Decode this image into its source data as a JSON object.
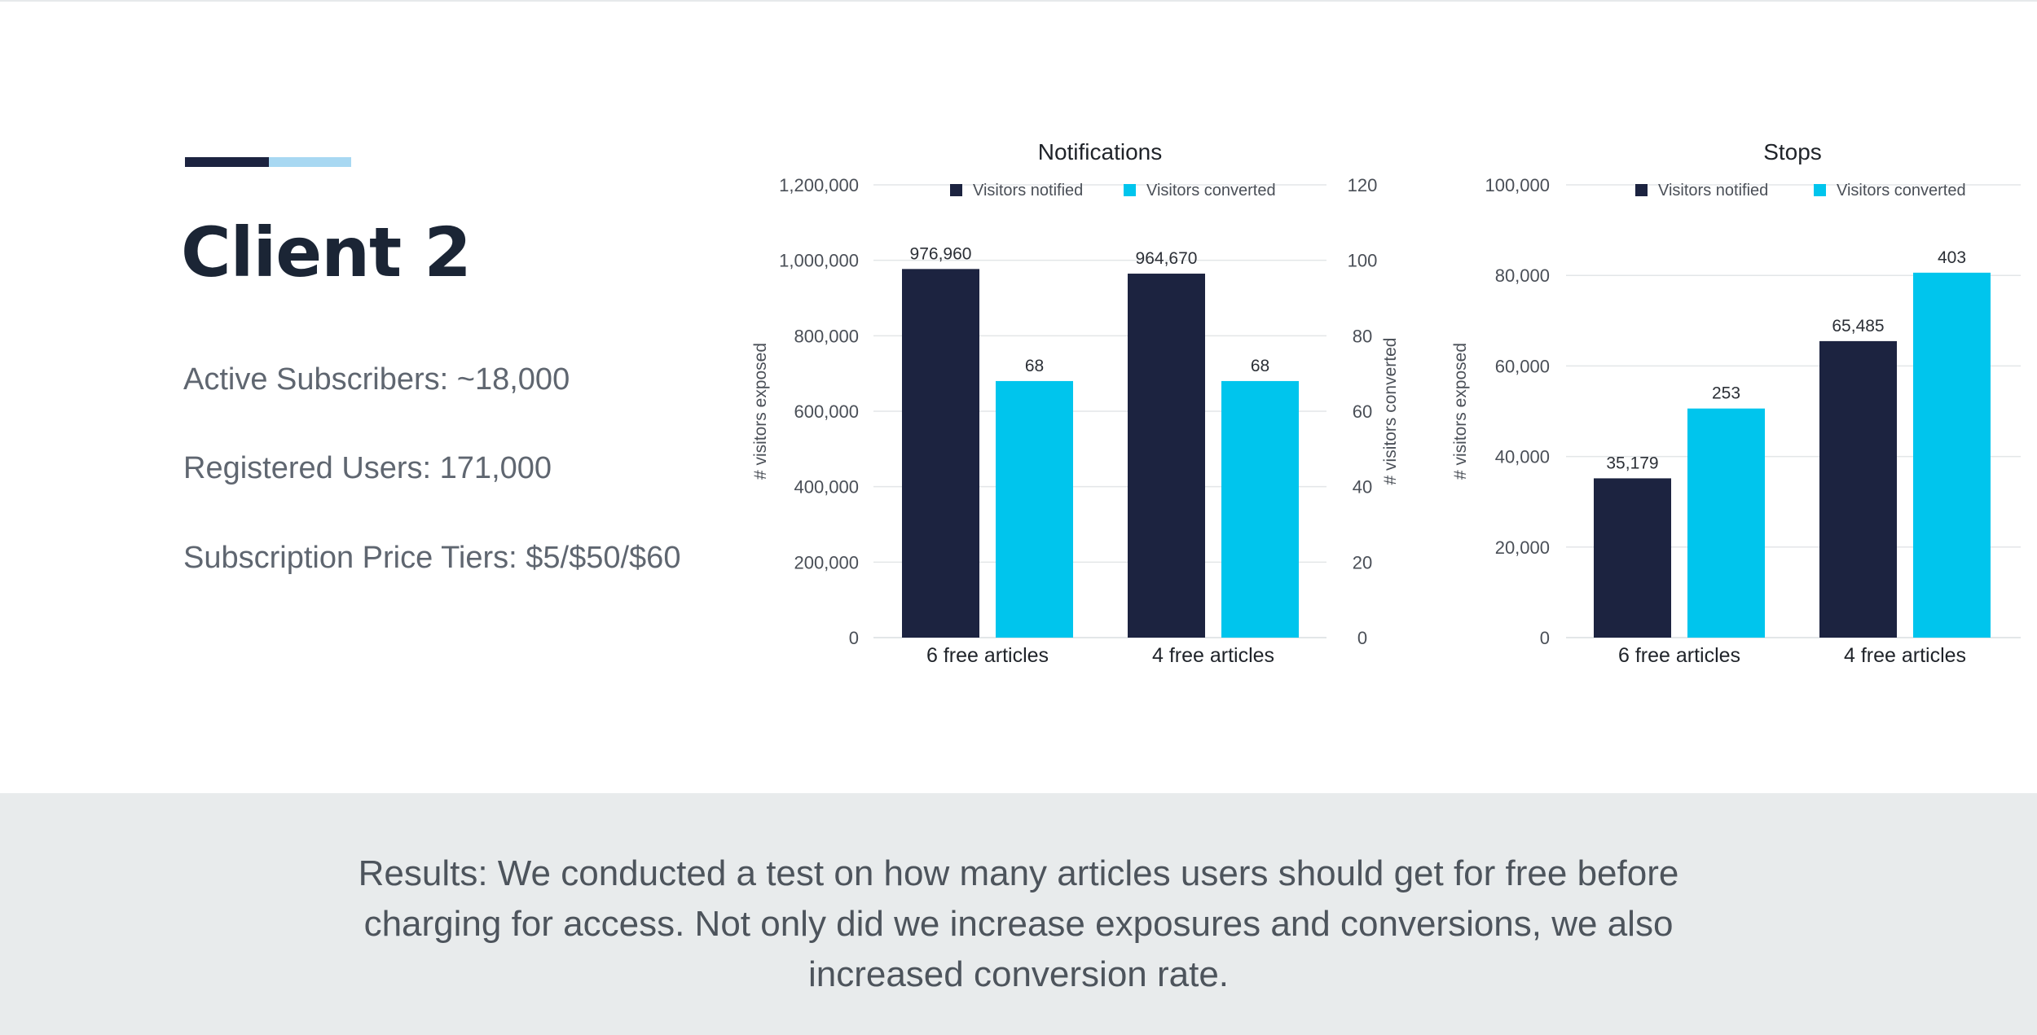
{
  "colors": {
    "dark": "#1c2340",
    "bright": "#00c5ed",
    "accent_light": "#a8d8f2",
    "title": "#1b2535",
    "text": "#5f6670",
    "grid": "#e3e6e8",
    "axis": "#4a4f57",
    "results_bg": "#e8ebec"
  },
  "client": {
    "title": "Client 2",
    "stats": [
      "Active Subscribers: ~18,000",
      "Registered Users: 171,000",
      "Subscription Price Tiers: $5/$50/$60"
    ]
  },
  "results": {
    "text": "Results: We conducted a test on how many articles users should get for free before charging for access. Not only did we increase exposures and conversions, we also increased conversion rate."
  },
  "chart_data": [
    {
      "type": "bar",
      "title": "Notifications",
      "categories": [
        "6 free articles",
        "4 free articles"
      ],
      "series": [
        {
          "name": "Visitors notified",
          "values": [
            976960,
            964670
          ],
          "axis": "left",
          "color": "#1c2340"
        },
        {
          "name": "Visitors converted",
          "values": [
            68,
            68
          ],
          "axis": "right",
          "color": "#00c5ed"
        }
      ],
      "data_labels": [
        [
          "976,960",
          "964,670"
        ],
        [
          "68",
          "68"
        ]
      ],
      "ylabel": "# visitors exposed",
      "ylabel_right": "# visitors converted",
      "ylim": [
        0,
        1200000
      ],
      "ylim_right": [
        0,
        120
      ],
      "yticks": [
        "0",
        "200,000",
        "400,000",
        "600,000",
        "800,000",
        "1,000,000",
        "1,200,000"
      ],
      "yticks_right": [
        "0",
        "20",
        "40",
        "60",
        "80",
        "100",
        "120"
      ],
      "legend_position": "top-center",
      "grid": true
    },
    {
      "type": "bar",
      "title": "Stops",
      "categories": [
        "6 free articles",
        "4 free articles"
      ],
      "series": [
        {
          "name": "Visitors notified",
          "values": [
            35179,
            65485
          ],
          "axis": "left",
          "color": "#1c2340"
        },
        {
          "name": "Visitors converted",
          "values": [
            253,
            403
          ],
          "axis": "right",
          "color": "#00c5ed"
        }
      ],
      "data_labels": [
        [
          "35,179",
          "65,485"
        ],
        [
          "253",
          "403"
        ]
      ],
      "ylabel": "# visitors exposed",
      "ylabel_right": "",
      "ylim": [
        0,
        100000
      ],
      "ylim_right": [
        0,
        500
      ],
      "yticks": [
        "0",
        "20,000",
        "40,000",
        "60,000",
        "80,000",
        "100,000"
      ],
      "yticks_right": [],
      "legend_position": "top-center",
      "grid": true
    }
  ]
}
